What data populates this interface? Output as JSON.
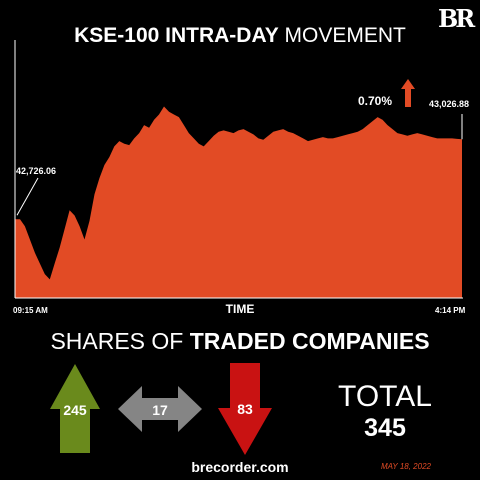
{
  "brand": {
    "logo": "BR",
    "site": "brecorder.com",
    "date": "MAY 18, 2022"
  },
  "header": {
    "title_bold": "KSE-100 INTRA-DAY",
    "title_light": "MOVEMENT"
  },
  "change": {
    "percent_label": "0.70%",
    "direction": "up",
    "arrow_icon": "up-arrow-icon"
  },
  "colors": {
    "area": "#e24b25",
    "up": "#6a8a1c",
    "neutral": "#858585",
    "down": "#c91212",
    "background": "#000000"
  },
  "chart_data": {
    "type": "area",
    "title": "KSE-100 INTRA-DAY MOVEMENT",
    "xlabel": "TIME",
    "x_tick_labels": [
      "09:15 AM",
      "4:14 PM"
    ],
    "start_label": "42,726.06",
    "end_label": "43,026.88",
    "start_value": 42726.06,
    "end_value": 43026.88,
    "ylim": [
      42430,
      43400
    ],
    "series": [
      {
        "values": [
          42726,
          42726,
          42700,
          42650,
          42600,
          42560,
          42520,
          42500,
          42560,
          42620,
          42690,
          42760,
          42740,
          42700,
          42650,
          42720,
          42820,
          42880,
          42930,
          42960,
          43000,
          43020,
          43010,
          43005,
          43030,
          43050,
          43080,
          43070,
          43100,
          43120,
          43150,
          43130,
          43120,
          43110,
          43080,
          43050,
          43030,
          43010,
          43000,
          43020,
          43040,
          43055,
          43060,
          43055,
          43050,
          43060,
          43065,
          43055,
          43045,
          43030,
          43025,
          43040,
          43055,
          43060,
          43065,
          43055,
          43050,
          43040,
          43030,
          43020,
          43025,
          43030,
          43035,
          43030,
          43030,
          43035,
          43040,
          43045,
          43050,
          43055,
          43065,
          43080,
          43095,
          43110,
          43100,
          43080,
          43065,
          43050,
          43045,
          43040,
          43045,
          43050,
          43045,
          43040,
          43035,
          43030,
          43030,
          43030,
          43030,
          43028,
          43027
        ]
      }
    ],
    "grid": false
  },
  "shares": {
    "title_light": "SHARES OF",
    "title_bold": "TRADED COMPANIES",
    "advancers": "245",
    "unchanged": "17",
    "decliners": "83",
    "total_label": "TOTAL",
    "total": "345"
  }
}
